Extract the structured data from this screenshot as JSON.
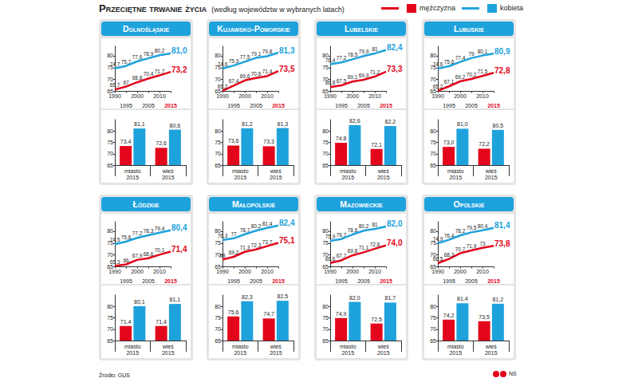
{
  "title": "Przeciętne trwanie życia",
  "subtitle": "(według województw w wybranych latach)",
  "source": "Źródło: GUS",
  "credit": "NS",
  "chart_data": [
    {
      "type": "line",
      "title": "Dolnośląskie",
      "categories": [
        "1990",
        "1995",
        "2000",
        "2005",
        "2010",
        "2015"
      ],
      "series": [
        {
          "name": "mężczyzna",
          "color": "#e3051b",
          "values": [
            65.7,
            67,
            68.8,
            70.4,
            71.7,
            73.2
          ],
          "value_labels": [
            "65,7",
            "67",
            "68,8",
            "70,4",
            "71,7",
            "73,2"
          ]
        },
        {
          "name": "kobieta",
          "color": "#1ea2dc",
          "values": [
            74.7,
            75.7,
            77.6,
            78.9,
            80.2,
            81.0
          ],
          "value_labels": [
            "74,7",
            "75,7",
            "77,6",
            "78,9",
            "80,2",
            "81,0"
          ]
        }
      ],
      "ylim": [
        65,
        84
      ],
      "yticks": [
        65,
        70,
        75,
        80
      ],
      "grid": false,
      "data_labels": true
    },
    {
      "type": "bar",
      "categories": [
        "miasto\n2015",
        "wieś\n2015"
      ],
      "series": [
        {
          "name": "mężczyzna",
          "color": "#e3051b",
          "values": [
            73.4,
            72.6
          ],
          "value_labels": [
            "73,4",
            "72,6"
          ]
        },
        {
          "name": "kobieta",
          "color": "#1ea2dc",
          "values": [
            81.1,
            80.6
          ],
          "value_labels": [
            "81,1",
            "80,6"
          ]
        }
      ],
      "ylim": [
        65,
        85
      ],
      "yticks": [
        65,
        70,
        75,
        80
      ],
      "grid": false,
      "data_labels": true
    },
    {
      "type": "line",
      "title": "Kujawsko-Pomorskie",
      "categories": [
        "1990",
        "1995",
        "2000",
        "2005",
        "2010",
        "2015"
      ],
      "series": [
        {
          "name": "mężczyzna",
          "color": "#e3051b",
          "values": [
            65.2,
            67.4,
            69.6,
            70.6,
            71.4,
            73.5
          ],
          "value_labels": [
            "65,2",
            "67,4",
            "69,6",
            "70,6",
            "71,4",
            "73,5"
          ]
        },
        {
          "name": "kobieta",
          "color": "#1ea2dc",
          "values": [
            74.6,
            75.9,
            77.5,
            79.1,
            79.8,
            81.3
          ],
          "value_labels": [
            "74,6",
            "75,9",
            "77,5",
            "79,1",
            "79,8",
            "81,3"
          ]
        }
      ],
      "ylim": [
        65,
        84
      ],
      "yticks": [
        65,
        70,
        75,
        80
      ],
      "grid": false,
      "data_labels": true
    },
    {
      "type": "bar",
      "categories": [
        "miasto\n2015",
        "wieś\n2015"
      ],
      "series": [
        {
          "name": "mężczyzna",
          "color": "#e3051b",
          "values": [
            73.6,
            73.3
          ],
          "value_labels": [
            "73,6",
            "73,3"
          ]
        },
        {
          "name": "kobieta",
          "color": "#1ea2dc",
          "values": [
            81.2,
            81.3
          ],
          "value_labels": [
            "81,2",
            "81,3"
          ]
        }
      ],
      "ylim": [
        65,
        85
      ],
      "yticks": [
        65,
        70,
        75,
        80
      ],
      "grid": false,
      "data_labels": true
    },
    {
      "type": "line",
      "title": "Lubelskie",
      "categories": [
        "1990",
        "1995",
        "2000",
        "2005",
        "2010",
        "2015"
      ],
      "series": [
        {
          "name": "mężczyzna",
          "color": "#e3051b",
          "values": [
            66.8,
            67.5,
            69.1,
            69.9,
            71.2,
            73.3
          ],
          "value_labels": [
            "66,8",
            "67,5",
            "69,1",
            "69,9",
            "71,2",
            "73,3"
          ]
        },
        {
          "name": "kobieta",
          "color": "#1ea2dc",
          "values": [
            76.4,
            77.2,
            78.5,
            79.9,
            81,
            82.4
          ],
          "value_labels": [
            "76,4",
            "77,2",
            "78,5",
            "79,9",
            "81",
            "82,4"
          ]
        }
      ],
      "ylim": [
        65,
        84
      ],
      "yticks": [
        65,
        70,
        75,
        80
      ],
      "grid": false,
      "data_labels": true
    },
    {
      "type": "bar",
      "categories": [
        "miasto\n2015",
        "wieś\n2015"
      ],
      "series": [
        {
          "name": "mężczyzna",
          "color": "#e3051b",
          "values": [
            74.8,
            72.1
          ],
          "value_labels": [
            "74,8",
            "72,1"
          ]
        },
        {
          "name": "kobieta",
          "color": "#1ea2dc",
          "values": [
            82.6,
            82.2
          ],
          "value_labels": [
            "82,6",
            "82,2"
          ]
        }
      ],
      "ylim": [
        65,
        85
      ],
      "yticks": [
        65,
        70,
        75,
        80
      ],
      "grid": false,
      "data_labels": true
    },
    {
      "type": "line",
      "title": "Lubuskie",
      "categories": [
        "1990",
        "1995",
        "2000",
        "2005",
        "2010",
        "2015"
      ],
      "series": [
        {
          "name": "mężczyzna",
          "color": "#e3051b",
          "values": [
            65.2,
            67.1,
            69.2,
            70.2,
            71.5,
            72.8
          ],
          "value_labels": [
            "65,2",
            "67,1",
            "69,2",
            "70,2",
            "71,5",
            "72,8"
          ]
        },
        {
          "name": "kobieta",
          "color": "#1ea2dc",
          "values": [
            74.6,
            75.6,
            77.4,
            79,
            80.1,
            80.9
          ],
          "value_labels": [
            "74,6",
            "75,6",
            "77,4",
            "79",
            "80,1",
            "80,9"
          ]
        }
      ],
      "ylim": [
        65,
        84
      ],
      "yticks": [
        65,
        70,
        75,
        80
      ],
      "grid": false,
      "data_labels": true
    },
    {
      "type": "bar",
      "categories": [
        "miasto\n2015",
        "wieś\n2015"
      ],
      "series": [
        {
          "name": "mężczyzna",
          "color": "#e3051b",
          "values": [
            73.0,
            72.2
          ],
          "value_labels": [
            "73,0",
            "72,2"
          ]
        },
        {
          "name": "kobieta",
          "color": "#1ea2dc",
          "values": [
            81.0,
            80.5
          ],
          "value_labels": [
            "81,0",
            "80,5"
          ]
        }
      ],
      "ylim": [
        65,
        85
      ],
      "yticks": [
        65,
        70,
        75,
        80
      ],
      "grid": false,
      "data_labels": true
    },
    {
      "type": "line",
      "title": "Łódzkie",
      "categories": [
        "1990",
        "1995",
        "2000",
        "2005",
        "2010",
        "2015"
      ],
      "series": [
        {
          "name": "mężczyzna",
          "color": "#e3051b",
          "values": [
            65.3,
            66,
            67.9,
            68.6,
            70.1,
            71.4
          ],
          "value_labels": [
            "65,3",
            "66",
            "67,9",
            "68,6",
            "70,1",
            "71,4"
          ]
        },
        {
          "name": "kobieta",
          "color": "#1ea2dc",
          "values": [
            74.5,
            75.6,
            77.2,
            78.3,
            79.4,
            80.4
          ],
          "value_labels": [
            "74,5",
            "75,6",
            "77,2",
            "78,3",
            "79,4",
            "80,4"
          ]
        }
      ],
      "ylim": [
        65,
        84
      ],
      "yticks": [
        65,
        70,
        75,
        80
      ],
      "grid": false,
      "data_labels": true
    },
    {
      "type": "bar",
      "categories": [
        "miasto\n2015",
        "wieś\n2015"
      ],
      "series": [
        {
          "name": "mężczyzna",
          "color": "#e3051b",
          "values": [
            71.4,
            71.4
          ],
          "value_labels": [
            "71,4",
            "71,4"
          ]
        },
        {
          "name": "kobieta",
          "color": "#1ea2dc",
          "values": [
            80.1,
            81.1
          ],
          "value_labels": [
            "80,1",
            "81,1"
          ]
        }
      ],
      "ylim": [
        65,
        85
      ],
      "yticks": [
        65,
        70,
        75,
        80
      ],
      "grid": false,
      "data_labels": true
    },
    {
      "type": "line",
      "title": "Małopolskie",
      "categories": [
        "1990",
        "1995",
        "2000",
        "2005",
        "2010",
        "2015"
      ],
      "series": [
        {
          "name": "mężczyzna",
          "color": "#e3051b",
          "values": [
            68,
            69.2,
            71.3,
            72.3,
            73.7,
            75.1
          ],
          "value_labels": [
            "68",
            "69,2",
            "71,3",
            "72,3",
            "73,7",
            "75,1"
          ]
        },
        {
          "name": "kobieta",
          "color": "#1ea2dc",
          "values": [
            76.3,
            77,
            78.7,
            80.2,
            81.4,
            82.4
          ],
          "value_labels": [
            "76,3",
            "77",
            "78,7",
            "80,2",
            "81,4",
            "82,4"
          ]
        }
      ],
      "ylim": [
        65,
        84
      ],
      "yticks": [
        65,
        70,
        75,
        80
      ],
      "grid": false,
      "data_labels": true
    },
    {
      "type": "bar",
      "categories": [
        "miasto\n2015",
        "wieś\n2015"
      ],
      "series": [
        {
          "name": "mężczyzna",
          "color": "#e3051b",
          "values": [
            75.6,
            74.7
          ],
          "value_labels": [
            "75,6",
            "74,7"
          ]
        },
        {
          "name": "kobieta",
          "color": "#1ea2dc",
          "values": [
            82.3,
            82.5
          ],
          "value_labels": [
            "82,3",
            "82,5"
          ]
        }
      ],
      "ylim": [
        65,
        85
      ],
      "yticks": [
        65,
        70,
        75,
        80
      ],
      "grid": false,
      "data_labels": true
    },
    {
      "type": "line",
      "title": "Mazowieckie",
      "categories": [
        "1990",
        "1995",
        "2000",
        "2005",
        "2010",
        "2015"
      ],
      "series": [
        {
          "name": "mężczyzna",
          "color": "#e3051b",
          "values": [
            66.6,
            67.7,
            69.8,
            71.1,
            72.6,
            74.0
          ],
          "value_labels": [
            "66,6",
            "67,7",
            "69,8",
            "71,1",
            "72,6",
            "74,0"
          ]
        },
        {
          "name": "kobieta",
          "color": "#1ea2dc",
          "values": [
            75.9,
            76.7,
            78.6,
            80.2,
            81,
            82.0
          ],
          "value_labels": [
            "75,9",
            "76,7",
            "78,6",
            "80,2",
            "81",
            "82,0"
          ]
        }
      ],
      "ylim": [
        65,
        84
      ],
      "yticks": [
        65,
        70,
        75,
        80
      ],
      "grid": false,
      "data_labels": true
    },
    {
      "type": "bar",
      "categories": [
        "miasto\n2015",
        "wieś\n2015"
      ],
      "series": [
        {
          "name": "mężczyzna",
          "color": "#e3051b",
          "values": [
            74.9,
            72.5
          ],
          "value_labels": [
            "74,9",
            "72,5"
          ]
        },
        {
          "name": "kobieta",
          "color": "#1ea2dc",
          "values": [
            82.0,
            81.7
          ],
          "value_labels": [
            "82,0",
            "81,7"
          ]
        }
      ],
      "ylim": [
        65,
        85
      ],
      "yticks": [
        65,
        70,
        75,
        80
      ],
      "grid": false,
      "data_labels": true
    },
    {
      "type": "line",
      "title": "Opolskie",
      "categories": [
        "1990",
        "1995",
        "2000",
        "2005",
        "2010",
        "2015"
      ],
      "series": [
        {
          "name": "mężczyzna",
          "color": "#e3051b",
          "values": [
            66.5,
            68.3,
            70.7,
            71.9,
            73,
            73.8
          ],
          "value_labels": [
            "66,5",
            "68,3",
            "70,7",
            "71,9",
            "73",
            "73,8"
          ]
        },
        {
          "name": "kobieta",
          "color": "#1ea2dc",
          "values": [
            74.9,
            76.4,
            78.2,
            79.5,
            80.4,
            81.4
          ],
          "value_labels": [
            "74,9",
            "76,4",
            "78,2",
            "79,5",
            "80,4",
            "81,4"
          ]
        }
      ],
      "ylim": [
        65,
        84
      ],
      "yticks": [
        65,
        70,
        75,
        80
      ],
      "grid": false,
      "data_labels": true
    },
    {
      "type": "bar",
      "categories": [
        "miasto\n2015",
        "wieś\n2015"
      ],
      "series": [
        {
          "name": "mężczyzna",
          "color": "#e3051b",
          "values": [
            74.2,
            73.5
          ],
          "value_labels": [
            "74,2",
            "73,5"
          ]
        },
        {
          "name": "kobieta",
          "color": "#1ea2dc",
          "values": [
            81.4,
            81.2
          ],
          "value_labels": [
            "81,4",
            "81,2"
          ]
        }
      ],
      "ylim": [
        65,
        85
      ],
      "yticks": [
        65,
        70,
        75,
        80
      ],
      "grid": false,
      "data_labels": true
    }
  ]
}
